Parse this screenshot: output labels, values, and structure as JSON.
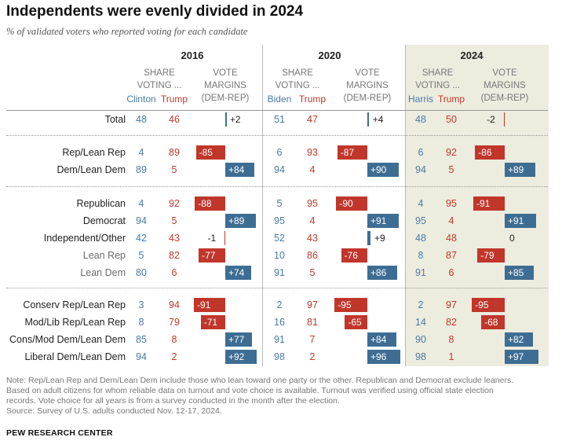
{
  "title": "Independents were evenly divided in 2024",
  "subtitle": "% of validated voters who reported voting for each candidate",
  "colors": {
    "rep": "#c1362b",
    "dem": "#3e6d93",
    "band": "#ececdf"
  },
  "column_headers": {
    "share_line1": "SHARE",
    "share_line2": "VOTING ...",
    "margin_line1": "VOTE",
    "margin_line2": "MARGINS",
    "margin_line3": "(DEM-REP)"
  },
  "years": [
    {
      "year": "2016",
      "dem_candidate": "Clinton",
      "rep_candidate": "Trump"
    },
    {
      "year": "2020",
      "dem_candidate": "Biden",
      "rep_candidate": "Trump"
    },
    {
      "year": "2024",
      "dem_candidate": "Harris",
      "rep_candidate": "Trump"
    }
  ],
  "chart_data": {
    "type": "table",
    "title": "Independents were evenly divided in 2024",
    "rows": [
      {
        "label": "Total",
        "muted": false,
        "values": [
          {
            "dem": "48",
            "rep": "46",
            "margin": 2,
            "label": "+2"
          },
          {
            "dem": "51",
            "rep": "47",
            "margin": 4,
            "label": "+4"
          },
          {
            "dem": "48",
            "rep": "50",
            "margin": -2,
            "label": "-2"
          }
        ]
      },
      {
        "label": "Rep/Lean Rep",
        "muted": false,
        "values": [
          {
            "dem": "4",
            "rep": "89",
            "margin": -85,
            "label": "-85"
          },
          {
            "dem": "6",
            "rep": "93",
            "margin": -87,
            "label": "-87"
          },
          {
            "dem": "6",
            "rep": "92",
            "margin": -86,
            "label": "-86"
          }
        ]
      },
      {
        "label": "Dem/Lean Dem",
        "muted": false,
        "values": [
          {
            "dem": "89",
            "rep": "5",
            "margin": 84,
            "label": "+84"
          },
          {
            "dem": "94",
            "rep": "4",
            "margin": 90,
            "label": "+90"
          },
          {
            "dem": "94",
            "rep": "5",
            "margin": 89,
            "label": "+89"
          }
        ]
      },
      {
        "label": "Republican",
        "muted": false,
        "values": [
          {
            "dem": "4",
            "rep": "92",
            "margin": -88,
            "label": "-88"
          },
          {
            "dem": "5",
            "rep": "95",
            "margin": -90,
            "label": "-90"
          },
          {
            "dem": "4",
            "rep": "95",
            "margin": -91,
            "label": "-91"
          }
        ]
      },
      {
        "label": "Democrat",
        "muted": false,
        "values": [
          {
            "dem": "94",
            "rep": "5",
            "margin": 89,
            "label": "+89"
          },
          {
            "dem": "95",
            "rep": "4",
            "margin": 91,
            "label": "+91"
          },
          {
            "dem": "95",
            "rep": "4",
            "margin": 91,
            "label": "+91"
          }
        ]
      },
      {
        "label": "Independent/Other",
        "muted": false,
        "values": [
          {
            "dem": "42",
            "rep": "43",
            "margin": -1,
            "label": "-1"
          },
          {
            "dem": "52",
            "rep": "43",
            "margin": 9,
            "label": "+9"
          },
          {
            "dem": "48",
            "rep": "48",
            "margin": 0,
            "label": "0"
          }
        ]
      },
      {
        "label": "Lean Rep",
        "muted": true,
        "values": [
          {
            "dem": "5",
            "rep": "82",
            "margin": -77,
            "label": "-77"
          },
          {
            "dem": "10",
            "rep": "86",
            "margin": -76,
            "label": "-76"
          },
          {
            "dem": "8",
            "rep": "87",
            "margin": -79,
            "label": "-79"
          }
        ]
      },
      {
        "label": "Lean Dem",
        "muted": true,
        "values": [
          {
            "dem": "80",
            "rep": "6",
            "margin": 74,
            "label": "+74"
          },
          {
            "dem": "91",
            "rep": "5",
            "margin": 86,
            "label": "+86"
          },
          {
            "dem": "91",
            "rep": "6",
            "margin": 85,
            "label": "+85"
          }
        ]
      },
      {
        "label": "Conserv Rep/Lean Rep",
        "muted": false,
        "values": [
          {
            "dem": "3",
            "rep": "94",
            "margin": -91,
            "label": "-91"
          },
          {
            "dem": "2",
            "rep": "97",
            "margin": -95,
            "label": "-95"
          },
          {
            "dem": "2",
            "rep": "97",
            "margin": -95,
            "label": "-95"
          }
        ]
      },
      {
        "label": "Mod/Lib Rep/Lean Rep",
        "muted": false,
        "values": [
          {
            "dem": "8",
            "rep": "79",
            "margin": -71,
            "label": "-71"
          },
          {
            "dem": "16",
            "rep": "81",
            "margin": -65,
            "label": "-65"
          },
          {
            "dem": "14",
            "rep": "82",
            "margin": -68,
            "label": "-68"
          }
        ]
      },
      {
        "label": "Cons/Mod Dem/Lean Dem",
        "muted": false,
        "values": [
          {
            "dem": "85",
            "rep": "8",
            "margin": 77,
            "label": "+77"
          },
          {
            "dem": "91",
            "rep": "7",
            "margin": 84,
            "label": "+84"
          },
          {
            "dem": "90",
            "rep": "8",
            "margin": 82,
            "label": "+82"
          }
        ]
      },
      {
        "label": "Liberal Dem/Lean Dem",
        "muted": false,
        "values": [
          {
            "dem": "94",
            "rep": "2",
            "margin": 92,
            "label": "+92"
          },
          {
            "dem": "98",
            "rep": "2",
            "margin": 96,
            "label": "+96"
          },
          {
            "dem": "98",
            "rep": "1",
            "margin": 97,
            "label": "+97"
          }
        ]
      }
    ]
  },
  "notes": {
    "line1": "Note: Rep/Lean Rep and Dem/Lean Dem include those who lean toward one party or the other. Republican and Democrat exclude leaners.",
    "line2": "Based on adult citizens for whom reliable data on turnout and vote choice is available. Turnout was verified using official state election",
    "line3": "records. Vote choice for all years is from a survey conducted in the month after the election.",
    "source": "Source: Survey of U.S. adults conducted Nov. 12-17, 2024."
  },
  "org": "PEW RESEARCH CENTER"
}
